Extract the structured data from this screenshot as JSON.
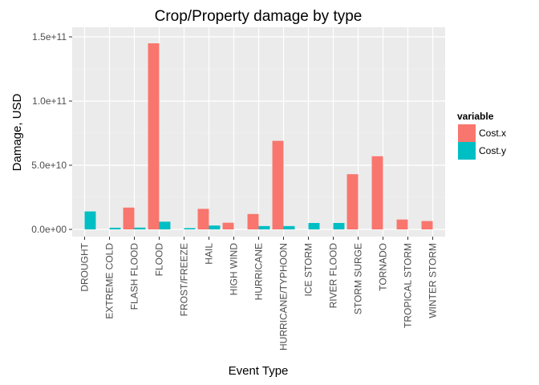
{
  "chart_data": {
    "type": "bar",
    "title": "Crop/Property damage  by type",
    "xlabel": "Event Type",
    "ylabel": "Damage, USD",
    "categories": [
      "DROUGHT",
      "EXTREME COLD",
      "FLASH FLOOD",
      "FLOOD",
      "FROST/FREEZE",
      "HAIL",
      "HIGH WIND",
      "HURRICANE",
      "HURRICANE/TYPHOON",
      "ICE STORM",
      "RIVER FLOOD",
      "STORM SURGE",
      "TORNADO",
      "TROPICAL STORM",
      "WINTER STORM"
    ],
    "series": [
      {
        "name": "Cost.x",
        "color": "#F8766D",
        "values": [
          0,
          0,
          17000000000,
          145000000000,
          0,
          16000000000,
          5200000000,
          12000000000,
          69000000000,
          0,
          0,
          43000000000,
          57000000000,
          7700000000,
          6500000000
        ]
      },
      {
        "name": "Cost.y",
        "color": "#00BFC4",
        "values": [
          14000000000,
          1300000000,
          1400000000,
          6000000000,
          1000000000,
          3000000000,
          0,
          2600000000,
          2600000000,
          5000000000,
          5000000000,
          0,
          0,
          0,
          0
        ]
      }
    ],
    "ylim": [
      0,
      150000000000
    ],
    "yticks": [
      {
        "value": 0,
        "label": "0.0e+00"
      },
      {
        "value": 50000000000,
        "label": "5.0e+10"
      },
      {
        "value": 100000000000,
        "label": "1.0e+11"
      },
      {
        "value": 150000000000,
        "label": "1.5e+11"
      }
    ],
    "grid": true,
    "legend": {
      "title": "variable",
      "position": "right"
    }
  }
}
